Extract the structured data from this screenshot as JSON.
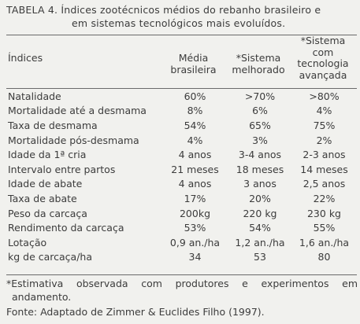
{
  "caption": {
    "line1": "TABELA 4. Índices zootécnicos médios do rebanho brasileiro e",
    "line2": "em sistemas tecnológicos mais evoluídos."
  },
  "header": {
    "indices": "Índices",
    "col1": [
      "Média",
      "brasileira"
    ],
    "col2": [
      "*Sistema",
      "melhorado"
    ],
    "col3": [
      "*Sistema",
      "com",
      "tecnologia",
      "avançada"
    ]
  },
  "rows": [
    {
      "label": "Natalidade",
      "media": "60%",
      "melhorado": ">70%",
      "avancada": ">80%"
    },
    {
      "label": "Mortalidade até a desmama",
      "media": "8%",
      "melhorado": "6%",
      "avancada": "4%"
    },
    {
      "label": "Taxa de desmama",
      "media": "54%",
      "melhorado": "65%",
      "avancada": "75%"
    },
    {
      "label": "Mortalidade pós-desmama",
      "media": "4%",
      "melhorado": "3%",
      "avancada": "2%"
    },
    {
      "label": "Idade da 1ª cria",
      "media": "4 anos",
      "melhorado": "3-4 anos",
      "avancada": "2-3 anos"
    },
    {
      "label": "Intervalo entre partos",
      "media": "21 meses",
      "melhorado": "18 meses",
      "avancada": "14 meses"
    },
    {
      "label": "Idade de abate",
      "media": "4 anos",
      "melhorado": "3 anos",
      "avancada": "2,5 anos"
    },
    {
      "label": "Taxa de abate",
      "media": "17%",
      "melhorado": "20%",
      "avancada": "22%"
    },
    {
      "label": "Peso da carcaça",
      "media": "200kg",
      "melhorado": "220 kg",
      "avancada": "230 kg"
    },
    {
      "label": "Rendimento da carcaça",
      "media": "53%",
      "melhorado": "54%",
      "avancada": "55%"
    },
    {
      "label": "Lotação",
      "media": "0,9 an./ha",
      "melhorado": "1,2 an./ha",
      "avancada": "1,6 an./ha"
    },
    {
      "label": "kg de carcaça/ha",
      "media": "34",
      "melhorado": "53",
      "avancada": "80"
    }
  ],
  "footnote": {
    "line1": "*Estimativa observada com produtores e experimentos em",
    "line2": "andamento."
  },
  "source": "Fonte: Adaptado de Zimmer & Euclides Filho (1997)."
}
